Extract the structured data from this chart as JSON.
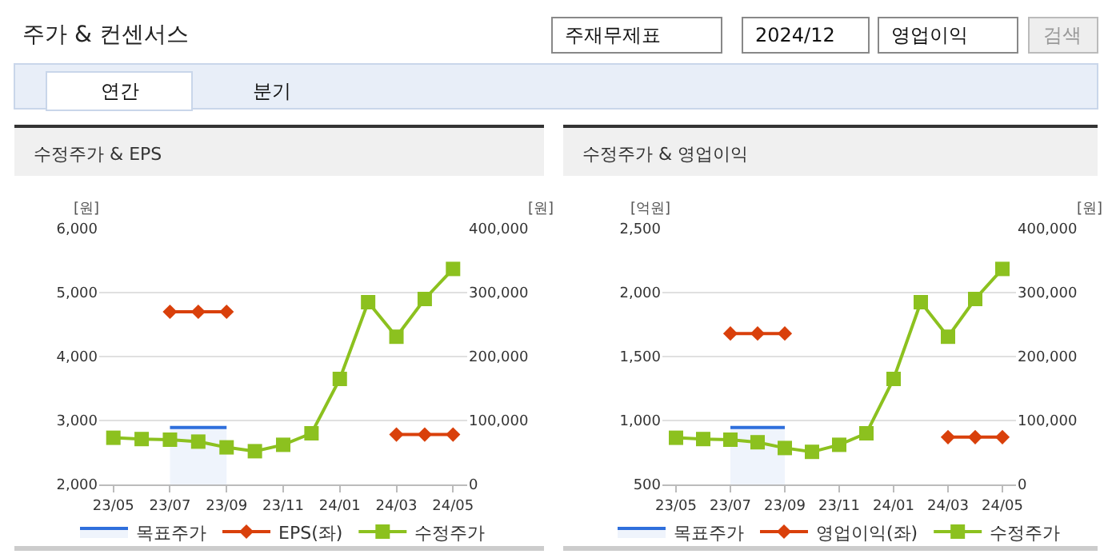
{
  "chart_data": [
    {
      "type": "line",
      "title": "수정주가 & EPS",
      "ylabel": "[원]",
      "y2label": "[원]",
      "annotations": [
        "주가 & 컨센서스",
        "주재무제표",
        "2024/12",
        "영업이익",
        "검색",
        "연간",
        "분기"
      ],
      "categories": [
        "23/05",
        null,
        "23/07",
        null,
        "23/09",
        null,
        "23/11",
        null,
        "24/01",
        null,
        "24/03",
        null,
        "24/05"
      ],
      "series": [
        {
          "name": "목표주가",
          "type": "area",
          "axis": "y2",
          "color": "#2f6fdc",
          "marker": "none",
          "values": [
            null,
            null,
            89000,
            89000,
            89000,
            null,
            null,
            null,
            null,
            null,
            null,
            null,
            null
          ]
        },
        {
          "name": "EPS(좌)",
          "color": "#d9400b",
          "marker": "diamond",
          "values": [
            null,
            null,
            4700,
            4700,
            4700,
            null,
            null,
            null,
            null,
            null,
            2780,
            2780,
            2780
          ]
        },
        {
          "name": "수정주가",
          "axis": "y2",
          "color": "#8cc11f",
          "marker": "square",
          "values": [
            73000,
            71000,
            70000,
            67000,
            58000,
            52000,
            62000,
            80000,
            165000,
            285000,
            231000,
            290000,
            337000
          ]
        }
      ],
      "ylim": [
        2000,
        6000
      ],
      "yticks": [
        {
          "value": 2000,
          "label": "2,000"
        },
        {
          "value": 3000,
          "label": "3,000"
        },
        {
          "value": 4000,
          "label": "4,000"
        },
        {
          "value": 5000,
          "label": "5,000"
        },
        {
          "value": 6000,
          "label": "6,000"
        }
      ],
      "y2lim": [
        0,
        400000
      ],
      "y2ticks": [
        0,
        {
          "value": 100000,
          "label": "100,000"
        },
        {
          "value": 200000,
          "label": "200,000"
        },
        {
          "value": 300000,
          "label": "300,000"
        },
        {
          "value": 400000,
          "label": "400,000"
        }
      ],
      "grid": "y",
      "legend": "bottom"
    },
    {
      "type": "line",
      "title": "수정주가 & 영업이익",
      "ylabel": "[억원]",
      "y2label": "[원]",
      "categories": [
        "23/05",
        null,
        "23/07",
        null,
        "23/09",
        null,
        "23/11",
        null,
        "24/01",
        null,
        "24/03",
        null,
        "24/05"
      ],
      "series": [
        {
          "name": "목표주가",
          "type": "area",
          "axis": "y2",
          "color": "#2f6fdc",
          "marker": "none",
          "values": [
            null,
            null,
            89000,
            89000,
            89000,
            null,
            null,
            null,
            null,
            null,
            null,
            null,
            null
          ]
        },
        {
          "name": "영업이익(좌)",
          "color": "#d9400b",
          "marker": "diamond",
          "values": [
            null,
            null,
            1680,
            1680,
            1680,
            null,
            null,
            null,
            null,
            null,
            870,
            870,
            870
          ]
        },
        {
          "name": "수정주가",
          "axis": "y2",
          "color": "#8cc11f",
          "marker": "square",
          "values": [
            73000,
            71000,
            70000,
            66000,
            57000,
            51000,
            62000,
            80000,
            165000,
            285000,
            231000,
            290000,
            337000
          ]
        }
      ],
      "ylim": [
        500,
        2500
      ],
      "yticks": [
        500,
        {
          "value": 1000,
          "label": "1,000"
        },
        {
          "value": 1500,
          "label": "1,500"
        },
        {
          "value": 2000,
          "label": "2,000"
        },
        {
          "value": 2500,
          "label": "2,500"
        }
      ],
      "y2lim": [
        0,
        400000
      ],
      "y2ticks": [
        0,
        {
          "value": 100000,
          "label": "100,000"
        },
        {
          "value": 200000,
          "label": "200,000"
        },
        {
          "value": 300000,
          "label": "300,000"
        },
        {
          "value": 400000,
          "label": "400,000"
        }
      ],
      "grid": "y",
      "legend": "bottom"
    }
  ]
}
